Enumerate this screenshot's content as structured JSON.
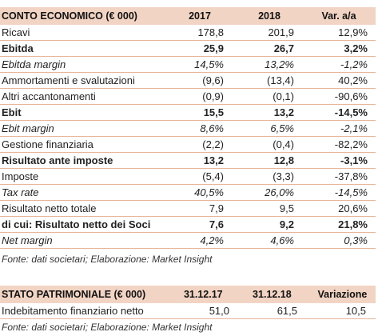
{
  "income": {
    "headers": [
      "CONTO ECONOMICO (€ 000)",
      "2017",
      "2018",
      "Var. a/a"
    ],
    "rows": [
      {
        "label": "Ricavi",
        "v2017": "178,8",
        "v2018": "201,9",
        "var": "12,9%",
        "style": "normal"
      },
      {
        "label": "Ebitda",
        "v2017": "25,9",
        "v2018": "26,7",
        "var": "3,2%",
        "style": "bold"
      },
      {
        "label": "Ebitda margin",
        "v2017": "14,5%",
        "v2018": "13,2%",
        "var": "-1,2%",
        "style": "ital"
      },
      {
        "label": "Ammortamenti e svalutazioni",
        "v2017": "(9,6)",
        "v2018": "(13,4)",
        "var": "40,2%",
        "style": "normal"
      },
      {
        "label": "Altri accantonamenti",
        "v2017": "(0,9)",
        "v2018": "(0,1)",
        "var": "-90,6%",
        "style": "normal"
      },
      {
        "label": "Ebit",
        "v2017": "15,5",
        "v2018": "13,2",
        "var": "-14,5%",
        "style": "bold"
      },
      {
        "label": "Ebit margin",
        "v2017": "8,6%",
        "v2018": "6,5%",
        "var": "-2,1%",
        "style": "ital"
      },
      {
        "label": "Gestione finanziaria",
        "v2017": "(2,2)",
        "v2018": "(0,4)",
        "var": "-82,2%",
        "style": "normal"
      },
      {
        "label": "Risultato ante imposte",
        "v2017": "13,2",
        "v2018": "12,8",
        "var": "-3,1%",
        "style": "bold"
      },
      {
        "label": "Imposte",
        "v2017": "(5,4)",
        "v2018": "(3,3)",
        "var": "-37,8%",
        "style": "normal"
      },
      {
        "label": "Tax rate",
        "v2017": "40,5%",
        "v2018": "26,0%",
        "var": "-14,5%",
        "style": "ital"
      },
      {
        "label": "Risultato netto totale",
        "v2017": "7,9",
        "v2018": "9,5",
        "var": "20,6%",
        "style": "normal"
      },
      {
        "label": "di cui: Risultato netto dei Soci",
        "v2017": "7,6",
        "v2018": "9,2",
        "var": "21,8%",
        "style": "bold"
      },
      {
        "label": "Net margin",
        "v2017": "4,2%",
        "v2018": "4,6%",
        "var": "0,3%",
        "style": "ital"
      }
    ],
    "source": "Fonte: dati societari; Elaborazione: Market Insight"
  },
  "balance": {
    "headers": [
      "STATO PATRIMONIALE (€ 000)",
      "31.12.17",
      "31.12.18",
      "Variazione"
    ],
    "rows": [
      {
        "label": "Indebitamento finanziario netto",
        "v2017": "51,0",
        "v2018": "61,5",
        "var": "10,5",
        "style": "normal"
      }
    ],
    "source": "Fonte: dati societari; Elaborazione: Market Insight"
  }
}
